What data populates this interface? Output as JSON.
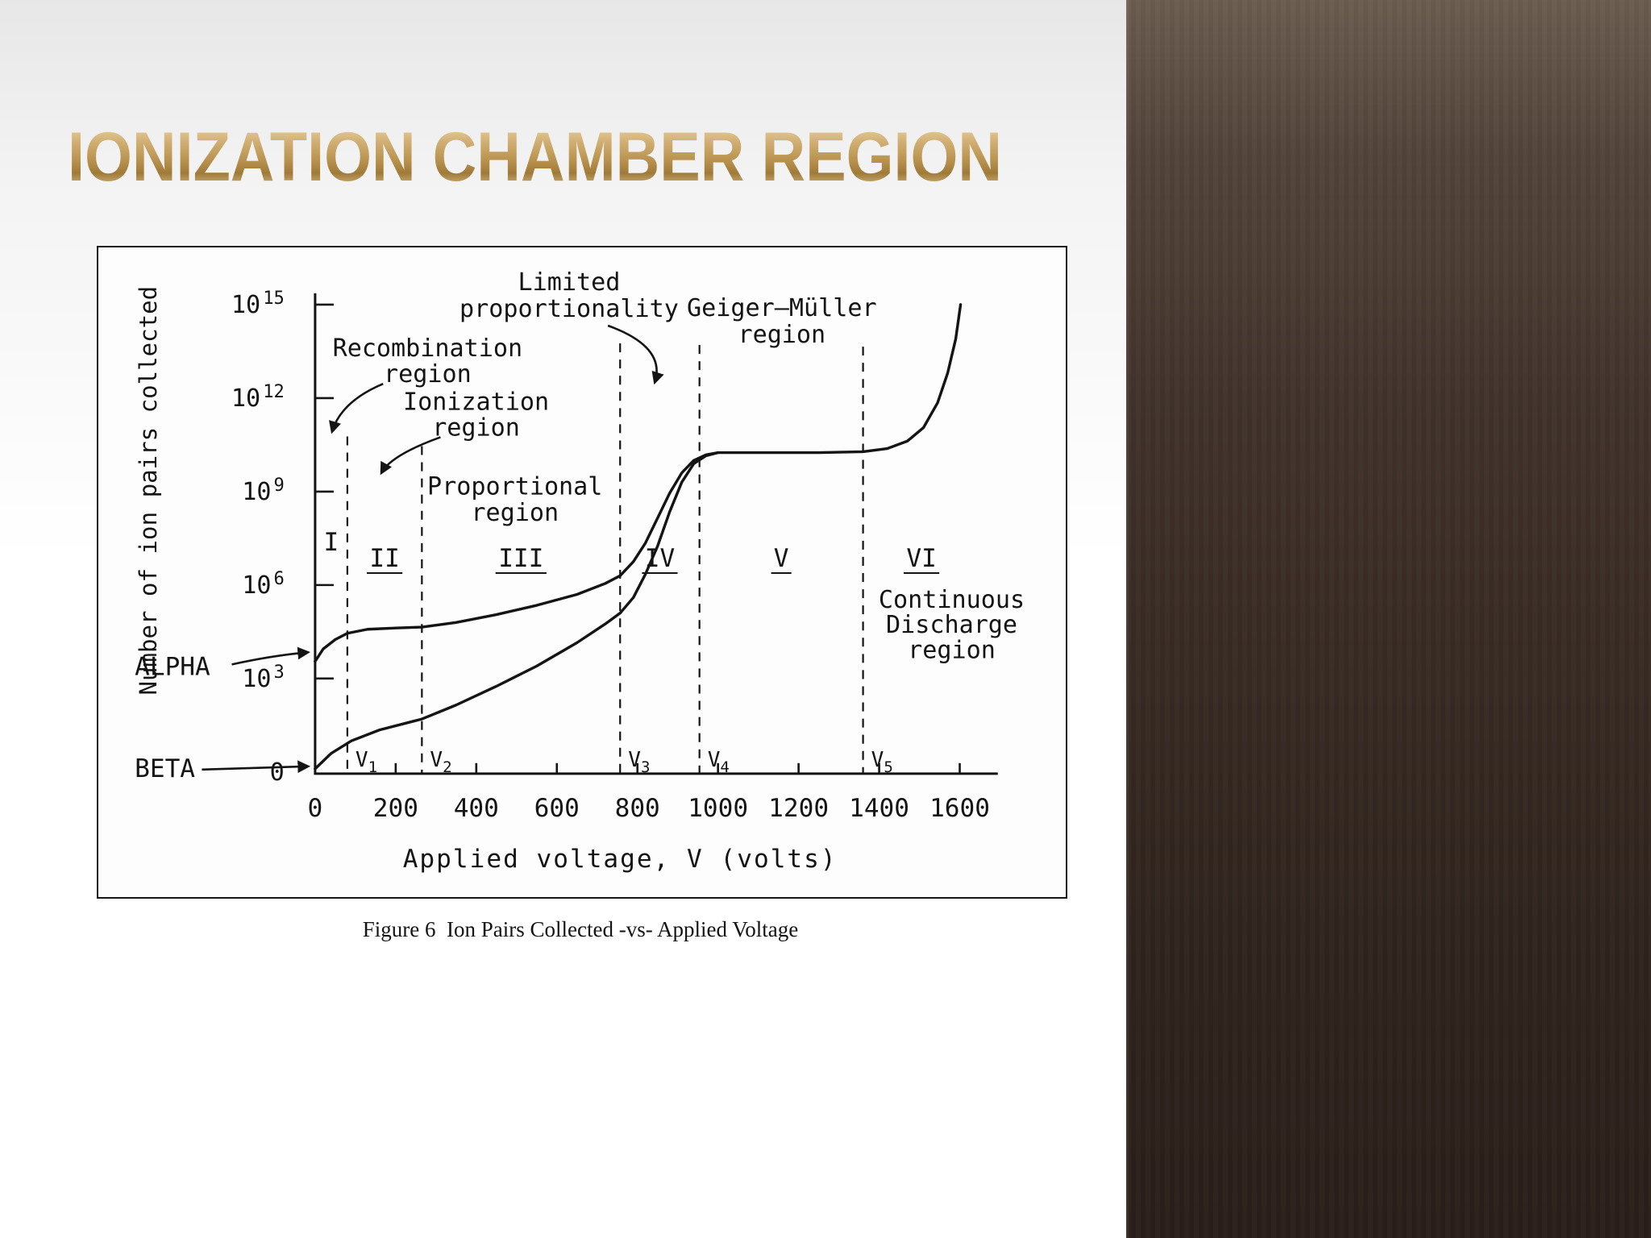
{
  "slide": {
    "title": "IONIZATION CHAMBER REGION",
    "caption": "Figure 6  Ion Pairs Collected -vs- Applied Voltage"
  },
  "colors": {
    "ink": "#141414",
    "title_gold": "#bf9c58",
    "side_band_brown": "#3a2d25",
    "slide_background": "#f5f5f5"
  },
  "chart_data": {
    "type": "line",
    "xlabel": "Applied voltage, V (volts)",
    "ylabel": "Number of ion pairs collected",
    "x_ticks": [
      0,
      200,
      400,
      600,
      800,
      1000,
      1200,
      1400,
      1600
    ],
    "x_range": [
      0,
      1700
    ],
    "y_axis": {
      "scale": "log10",
      "base_label": "10",
      "tick_exponents": [
        3,
        6,
        9,
        12,
        15
      ],
      "zero_label": "0",
      "range_exponents": [
        0,
        15
      ]
    },
    "region_boundaries": {
      "labels": [
        "V1",
        "V2",
        "V3",
        "V4",
        "V5"
      ],
      "volts": [
        80,
        265,
        757,
        954,
        1360
      ]
    },
    "regions": {
      "numerals": [
        "I",
        "II",
        "III",
        "IV",
        "V",
        "VI"
      ],
      "underlined": [
        false,
        true,
        true,
        true,
        true,
        true
      ]
    },
    "annotations": {
      "limited": [
        "Limited",
        "proportionality"
      ],
      "geiger": [
        "Geiger—Müller",
        "region"
      ],
      "recombination": [
        "Recombination",
        "region"
      ],
      "ionization": [
        "Ionization",
        "region"
      ],
      "proportional": [
        "Proportional",
        "region"
      ],
      "continuous": [
        "Continuous",
        "Discharge",
        "region"
      ]
    },
    "series": [
      {
        "name": "ALPHA",
        "points_volts_log10pairs": [
          [
            0,
            3.55
          ],
          [
            20,
            3.95
          ],
          [
            50,
            4.25
          ],
          [
            80,
            4.45
          ],
          [
            130,
            4.58
          ],
          [
            200,
            4.62
          ],
          [
            265,
            4.65
          ],
          [
            350,
            4.8
          ],
          [
            450,
            5.05
          ],
          [
            550,
            5.35
          ],
          [
            650,
            5.7
          ],
          [
            720,
            6.05
          ],
          [
            757,
            6.3
          ],
          [
            790,
            6.75
          ],
          [
            820,
            7.35
          ],
          [
            850,
            8.15
          ],
          [
            880,
            8.95
          ],
          [
            910,
            9.6
          ],
          [
            940,
            10.0
          ],
          [
            970,
            10.18
          ],
          [
            1000,
            10.25
          ],
          [
            1100,
            10.25
          ],
          [
            1250,
            10.25
          ],
          [
            1360,
            10.28
          ],
          [
            1420,
            10.38
          ],
          [
            1470,
            10.62
          ],
          [
            1510,
            11.05
          ],
          [
            1545,
            11.85
          ],
          [
            1570,
            12.8
          ],
          [
            1590,
            13.9
          ],
          [
            1602,
            15.0
          ]
        ]
      },
      {
        "name": "BETA",
        "points_volts_log10pairs": [
          [
            0,
            0.1
          ],
          [
            40,
            0.6
          ],
          [
            90,
            1.0
          ],
          [
            160,
            1.35
          ],
          [
            265,
            1.7
          ],
          [
            350,
            2.15
          ],
          [
            450,
            2.75
          ],
          [
            550,
            3.4
          ],
          [
            650,
            4.15
          ],
          [
            720,
            4.75
          ],
          [
            757,
            5.1
          ],
          [
            790,
            5.6
          ],
          [
            820,
            6.35
          ],
          [
            850,
            7.25
          ],
          [
            880,
            8.35
          ],
          [
            910,
            9.3
          ],
          [
            940,
            9.9
          ],
          [
            970,
            10.15
          ],
          [
            1000,
            10.25
          ]
        ]
      }
    ],
    "legend_position": "none",
    "grid": false
  }
}
